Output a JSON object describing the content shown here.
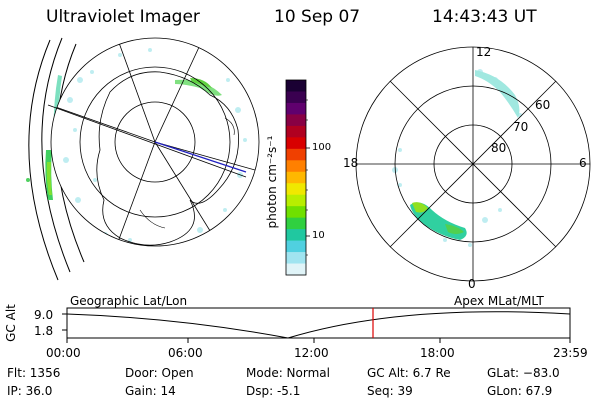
{
  "header": {
    "title": "Ultraviolet Imager",
    "date": "10 Sep 07",
    "time": "14:43:43 UT"
  },
  "colorbar": {
    "unit_label": "photon cm⁻²s⁻¹",
    "ticks": [
      "100",
      "10"
    ],
    "colors": [
      "#1a0033",
      "#3a0050",
      "#60006e",
      "#880044",
      "#b00020",
      "#d80000",
      "#f04000",
      "#ff8000",
      "#ffb800",
      "#f0e800",
      "#b8ee00",
      "#70e000",
      "#30d040",
      "#20c8a0",
      "#50d0e0",
      "#a0e4f0",
      "#e0f4f8"
    ]
  },
  "polar_plot": {
    "mlt_labels": [
      "12",
      "18",
      "6",
      "0"
    ],
    "lat_labels": [
      "60",
      "70",
      "80"
    ]
  },
  "timeline": {
    "left_label": "Geographic Lat/Lon",
    "right_label": "Apex MLat/MLT",
    "axis_title": "GC Alt",
    "y_ticks": [
      "9.0",
      "1.8"
    ],
    "x_ticks": [
      "00:00",
      "06:00",
      "12:00",
      "18:00",
      "23:59"
    ],
    "marker_color": "#dd0000"
  },
  "info": {
    "flt": "Flt: 1356",
    "ip": "IP: 36.0",
    "door": "Door: Open",
    "gain": "Gain: 14",
    "mode": "Mode: Normal",
    "dsp": "Dsp:    -5.1",
    "gcalt": "GC Alt: 6.7 Re",
    "seq": "Seq: 39",
    "glat": "GLat: −83.0",
    "glon": "GLon:  67.9"
  }
}
